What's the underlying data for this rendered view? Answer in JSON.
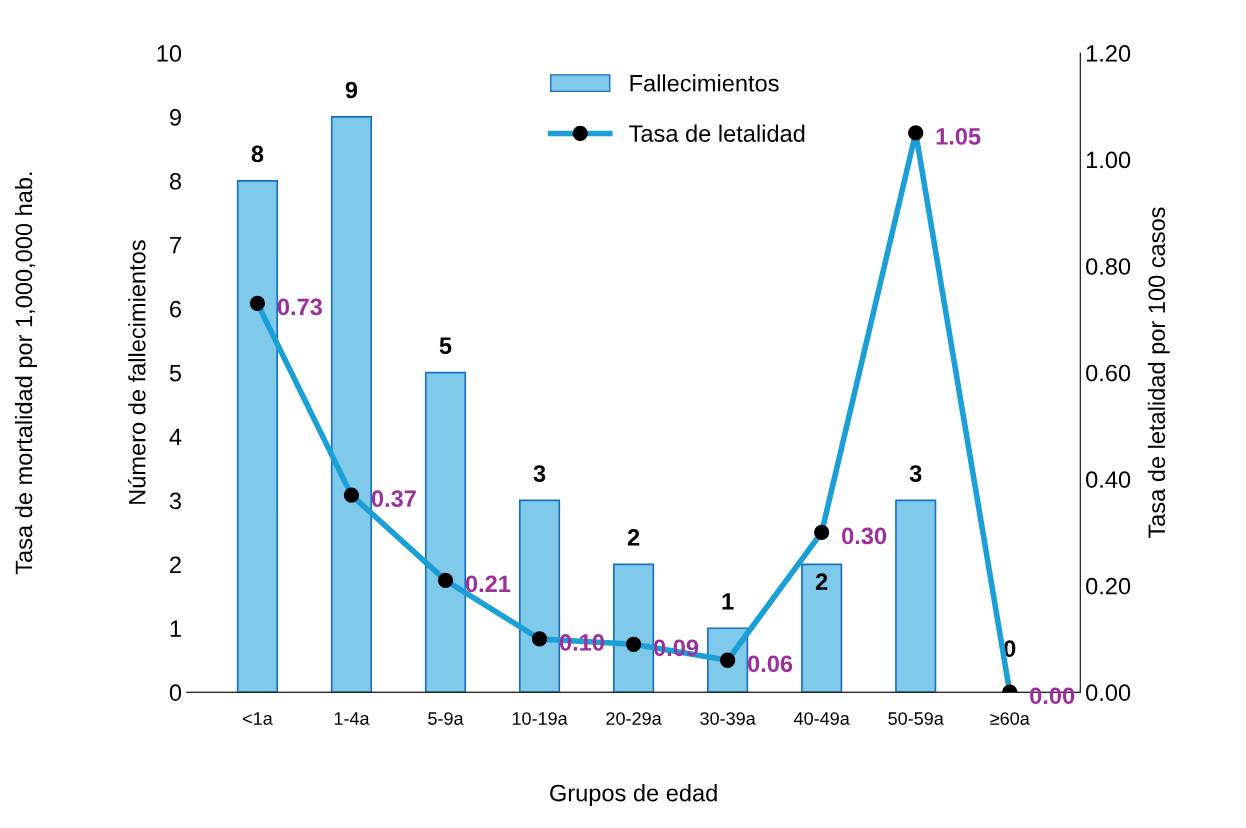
{
  "chart_data": {
    "type": "bar",
    "xlabel": "Grupos de edad",
    "ylabel": "Número de fallecimientos",
    "y2label": "Tasa de letalidad por 100 casos",
    "annotations": [
      "Tasa de mortalidad por 1,000,000 hab."
    ],
    "categories": [
      "<1a",
      "1-4a",
      "5-9a",
      "10-19a",
      "20-29a",
      "30-39a",
      "40-49a",
      "50-59a",
      "≥60a"
    ],
    "series": [
      {
        "name": "Fallecimientos",
        "color": "#7fc9ea",
        "values": [
          8,
          9,
          5,
          3,
          2,
          1,
          2,
          3,
          0
        ],
        "value_labels": [
          "8",
          "9",
          "5",
          "3",
          "2",
          "1",
          "2",
          "3",
          "0"
        ]
      },
      {
        "name": "Tasa de letalidad",
        "type": "line",
        "axis": "y2",
        "color": "#1a9fd6",
        "marker": "circle",
        "values": [
          0.73,
          0.37,
          0.21,
          0.1,
          0.09,
          0.06,
          0.3,
          1.05,
          0.0
        ],
        "value_labels": [
          "0.73",
          "0.37",
          "0.21",
          "0.10",
          "0.09",
          "0.06",
          "0.30",
          "1.05",
          "0.00"
        ]
      }
    ],
    "ylim": [
      0,
      10
    ],
    "yticks": [
      0,
      1,
      2,
      3,
      4,
      5,
      6,
      7,
      8,
      9,
      10
    ],
    "y2lim": [
      0,
      1.2
    ],
    "y2ticks": [
      {
        "value": 0,
        "label": "0.00"
      },
      {
        "value": 0.2,
        "label": "0.20"
      },
      {
        "value": 0.4,
        "label": "0.40"
      },
      {
        "value": 0.6,
        "label": "0.60"
      },
      {
        "value": 0.8,
        "label": "0.80"
      },
      {
        "value": 1.0,
        "label": "1.00"
      },
      {
        "value": 1.2,
        "label": "1.20"
      }
    ],
    "legend": "top",
    "grid": false
  }
}
